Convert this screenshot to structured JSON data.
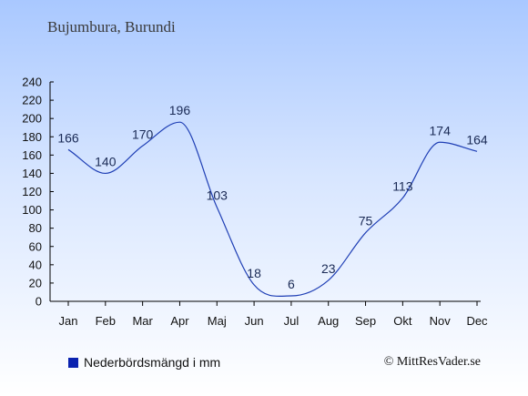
{
  "title": "Bujumbura, Burundi",
  "legend": {
    "label": "Nederbördsmängd i mm"
  },
  "copyright": "© MittResVader.se",
  "colors": {
    "line": "#1f3fb5",
    "swatch": "#0a22b0",
    "label": "#1a2a55",
    "axis": "#000000"
  },
  "chart_data": {
    "type": "line",
    "title": "Bujumbura, Burundi",
    "xlabel": "",
    "ylabel": "",
    "categories": [
      "Jan",
      "Feb",
      "Mar",
      "Apr",
      "Maj",
      "Jun",
      "Jul",
      "Aug",
      "Sep",
      "Okt",
      "Nov",
      "Dec"
    ],
    "series": [
      {
        "name": "Nederbördsmängd i mm",
        "values": [
          166,
          140,
          170,
          196,
          103,
          18,
          6,
          23,
          75,
          113,
          174,
          164
        ]
      }
    ],
    "ylim": [
      0,
      240
    ],
    "yticks": [
      0,
      20,
      40,
      60,
      80,
      100,
      120,
      140,
      160,
      180,
      200,
      220,
      240
    ],
    "grid": false,
    "legend_position": "bottom-left"
  }
}
